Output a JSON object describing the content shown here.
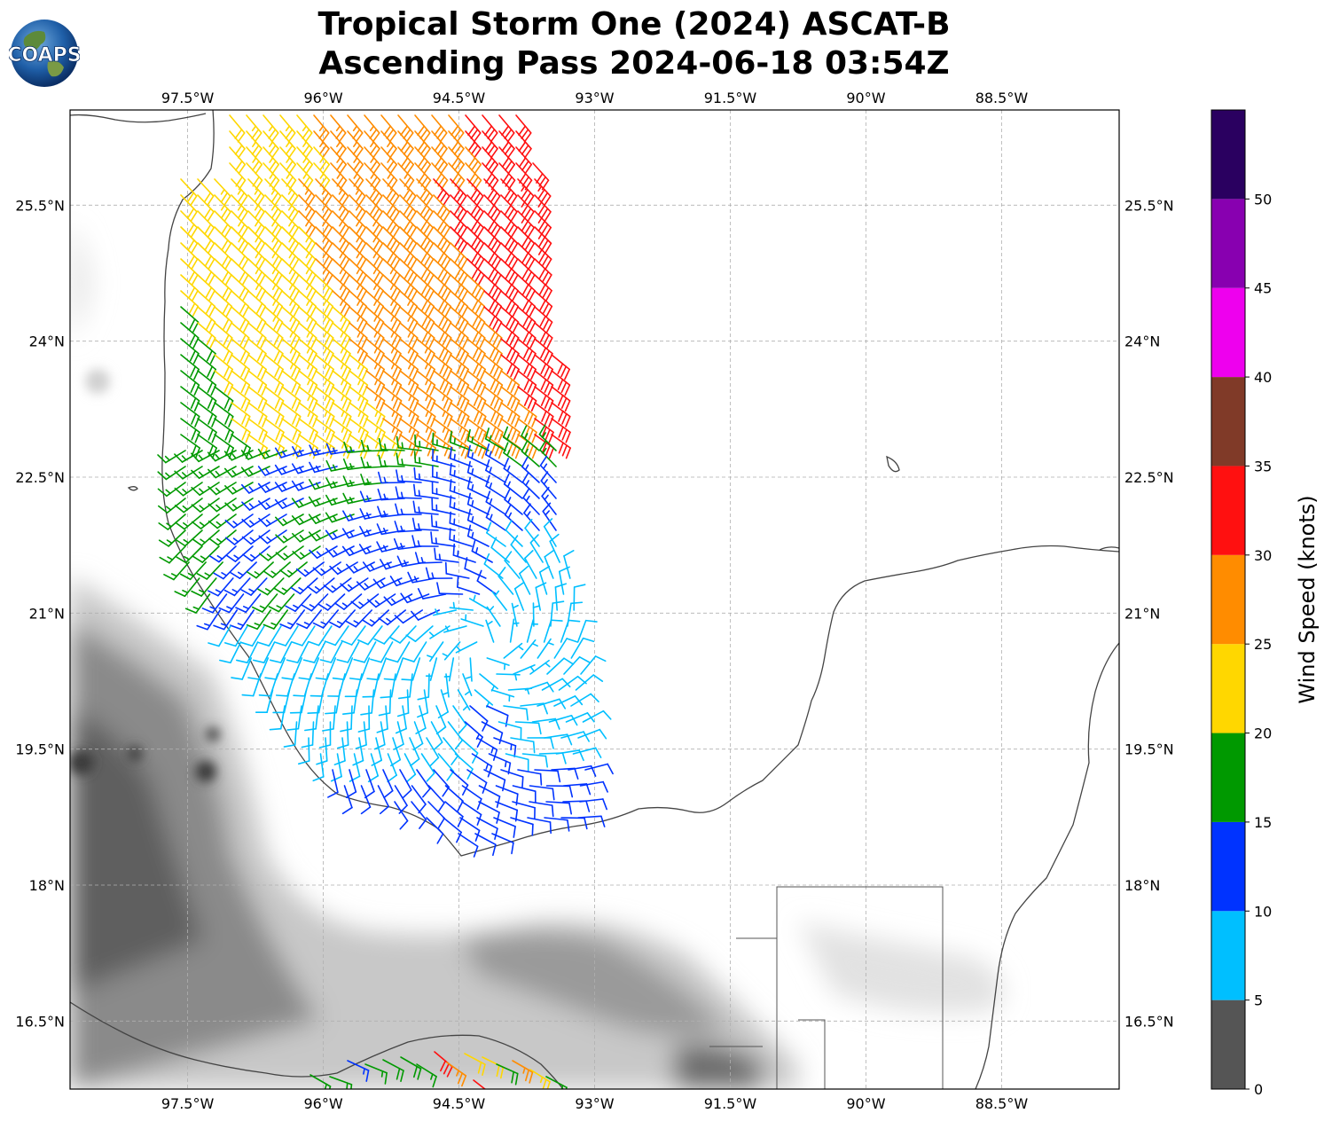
{
  "title_line1": "Tropical Storm One (2024) ASCAT-B",
  "title_line2": "Ascending Pass 2024-06-18 03:54Z",
  "logo_text": "COAPS",
  "lon_ticks": [
    "97.5°W",
    "96°W",
    "94.5°W",
    "93°W",
    "91.5°W",
    "90°W",
    "88.5°W"
  ],
  "lat_ticks": [
    "25.5°N",
    "24°N",
    "22.5°N",
    "21°N",
    "19.5°N",
    "18°N",
    "16.5°N"
  ],
  "colorbar": {
    "label": "Wind Speed (knots)",
    "tick_labels": [
      "0",
      "5",
      "10",
      "15",
      "20",
      "25",
      "30",
      "35",
      "40",
      "45",
      "50"
    ],
    "bins": [
      {
        "min": 0,
        "max": 5,
        "color": "#555555"
      },
      {
        "min": 5,
        "max": 10,
        "color": "#00bfff"
      },
      {
        "min": 10,
        "max": 15,
        "color": "#0033ff"
      },
      {
        "min": 15,
        "max": 20,
        "color": "#009900"
      },
      {
        "min": 20,
        "max": 25,
        "color": "#ffd700"
      },
      {
        "min": 25,
        "max": 30,
        "color": "#ff8c00"
      },
      {
        "min": 30,
        "max": 35,
        "color": "#ff1010"
      },
      {
        "min": 35,
        "max": 40,
        "color": "#803a28"
      },
      {
        "min": 40,
        "max": 45,
        "color": "#ee00ee"
      },
      {
        "min": 45,
        "max": 50,
        "color": "#8800b0"
      },
      {
        "min": 50,
        "max": 55,
        "color": "#2a0060"
      }
    ]
  },
  "map": {
    "lon_range": [
      -98.8,
      -87.2
    ],
    "lat_range": [
      15.75,
      26.55
    ],
    "lon_grid": [
      -97.5,
      -96,
      -94.5,
      -93,
      -91.5,
      -90,
      -88.5
    ],
    "lat_grid": [
      25.5,
      24,
      22.5,
      21,
      19.5,
      18,
      16.5
    ],
    "storm_center": {
      "lon": -94.2,
      "lat": 20.6
    }
  }
}
